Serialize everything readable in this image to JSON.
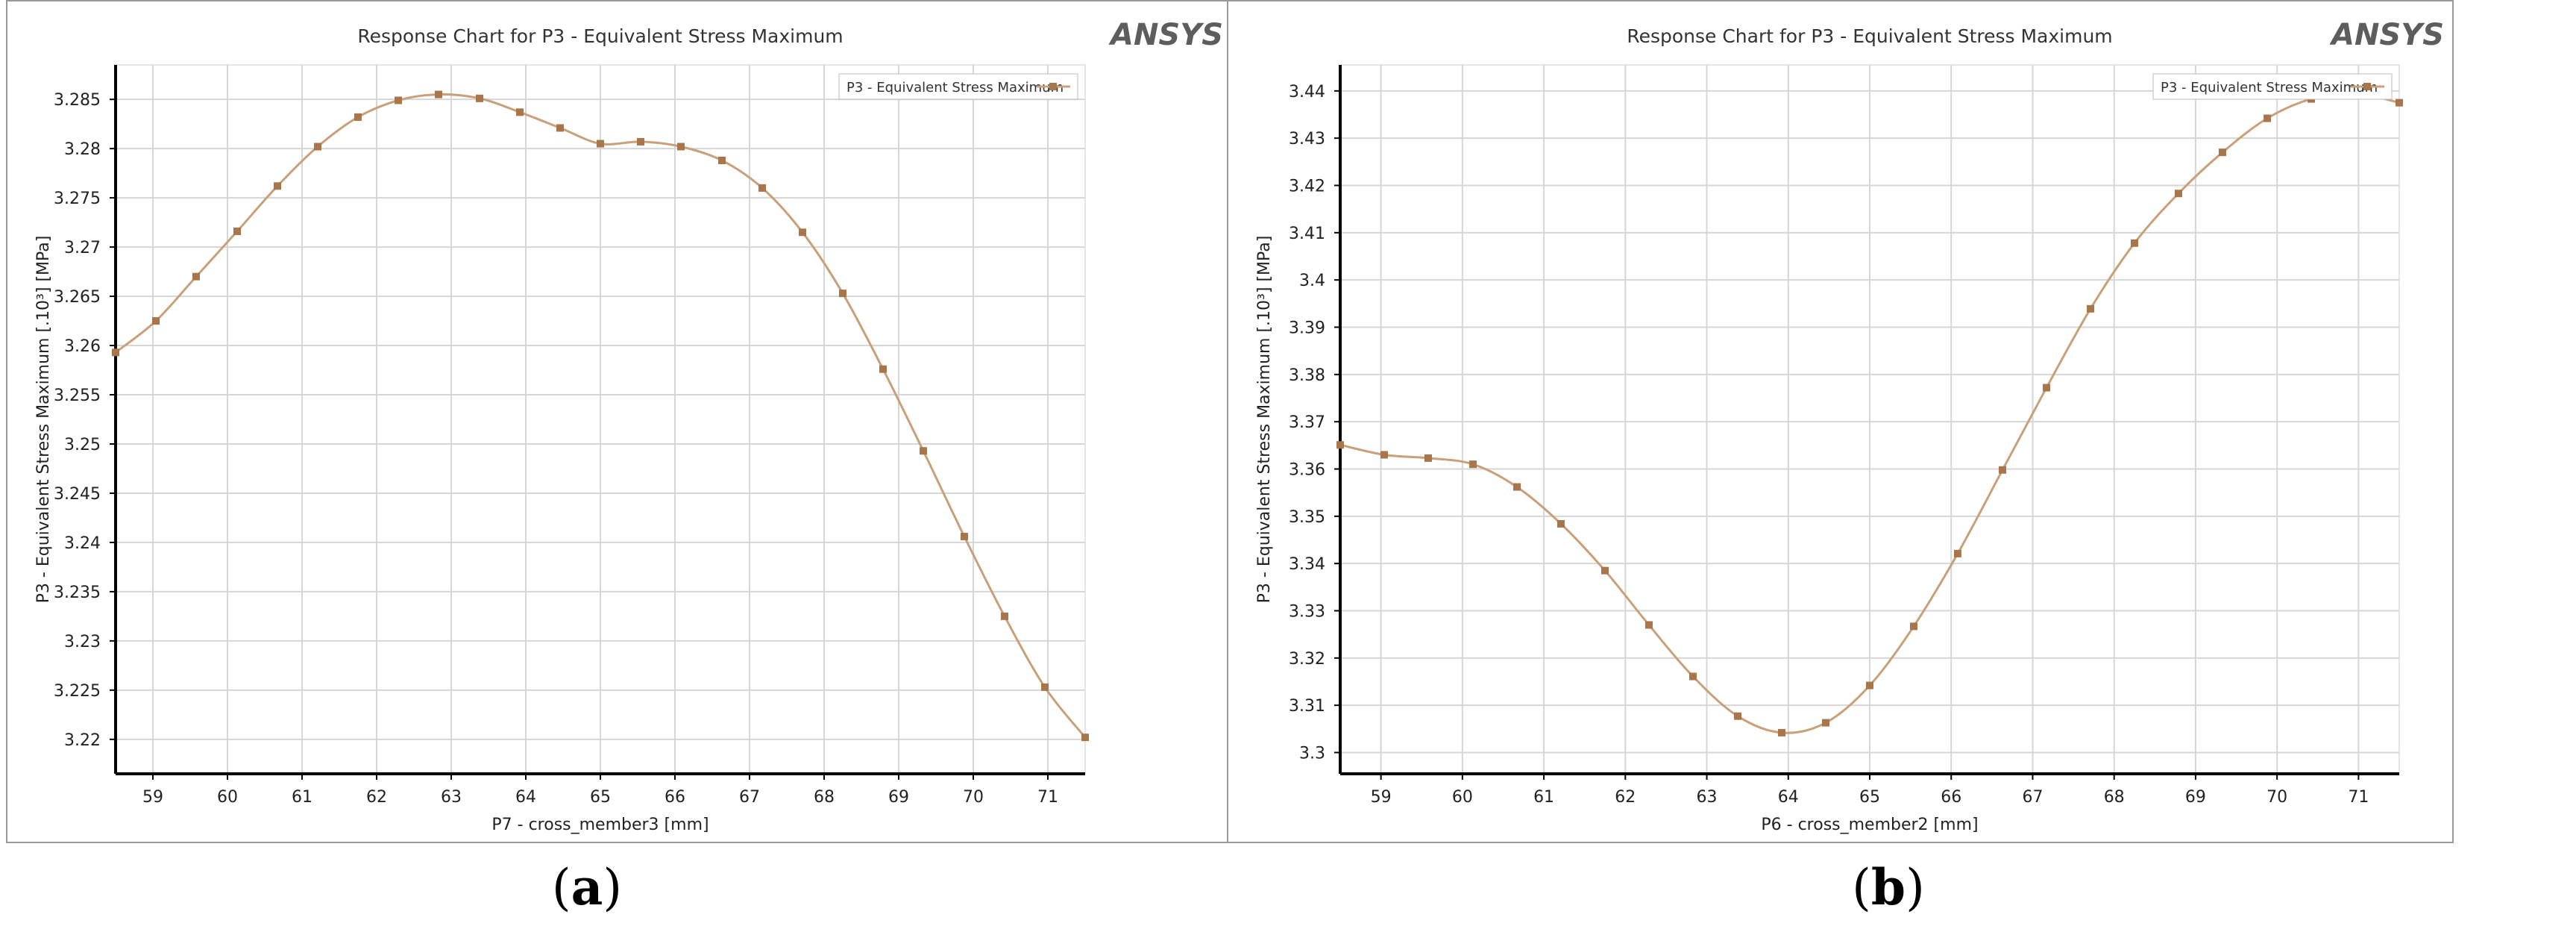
{
  "captions": {
    "a": "a",
    "b": "b"
  },
  "colors": {
    "series": "#c8a07a",
    "marker": "#a8764a",
    "grid": "#d6d6d6",
    "axis": "#000000",
    "logo_blue": "#5d5d5d",
    "logo_gold": "#e5b11a"
  },
  "chart_data": [
    {
      "type": "line",
      "title": "Response Chart for P3 - Equivalent Stress Maximum",
      "logo": "ANSYS",
      "xlabel": "P7 - cross_member3 [mm]",
      "ylabel": "P3 - Equivalent Stress Maximum [.10³] [MPa]",
      "xlim": [
        58.5,
        71.5
      ],
      "ylim": [
        3.2165,
        3.2885
      ],
      "xticks": [
        "59",
        "60",
        "61",
        "62",
        "63",
        "64",
        "65",
        "66",
        "67",
        "68",
        "69",
        "70",
        "71"
      ],
      "yticks": [
        "3.22",
        "3.225",
        "3.23",
        "3.235",
        "3.24",
        "3.245",
        "3.25",
        "3.255",
        "3.26",
        "3.265",
        "3.27",
        "3.275",
        "3.28",
        "3.285"
      ],
      "legend_position": "top-right",
      "series": [
        {
          "name": "P3 - Equivalent Stress Maximum",
          "x": [
            58.5,
            59.04,
            59.58,
            60.13,
            60.67,
            61.21,
            61.75,
            62.29,
            62.83,
            63.38,
            63.92,
            64.46,
            65.0,
            65.54,
            66.08,
            66.63,
            67.17,
            67.71,
            68.25,
            68.79,
            69.33,
            69.88,
            70.42,
            70.96,
            71.5
          ],
          "values": [
            3.2593,
            3.2625,
            3.267,
            3.2716,
            3.2762,
            3.2802,
            3.2832,
            3.2849,
            3.2855,
            3.2851,
            3.2837,
            3.2821,
            3.2805,
            3.2807,
            3.2802,
            3.2788,
            3.276,
            3.2715,
            3.2653,
            3.2576,
            3.2493,
            3.2406,
            3.2325,
            3.2253,
            3.2202
          ]
        }
      ]
    },
    {
      "type": "line",
      "title": "Response Chart for P3 - Equivalent Stress Maximum",
      "logo": "ANSYS",
      "xlabel": "P6 - cross_member2 [mm]",
      "ylabel": "P3 - Equivalent Stress Maximum [.10³] [MPa]",
      "xlim": [
        58.5,
        71.5
      ],
      "ylim": [
        3.2955,
        3.4455
      ],
      "xticks": [
        "59",
        "60",
        "61",
        "62",
        "63",
        "64",
        "65",
        "66",
        "67",
        "68",
        "69",
        "70",
        "71"
      ],
      "yticks": [
        "3.3",
        "3.31",
        "3.32",
        "3.33",
        "3.34",
        "3.35",
        "3.36",
        "3.37",
        "3.38",
        "3.39",
        "3.4",
        "3.41",
        "3.42",
        "3.43",
        "3.44"
      ],
      "legend_position": "top-right",
      "series": [
        {
          "name": "P3 - Equivalent Stress Maximum",
          "x": [
            58.5,
            59.04,
            59.58,
            60.13,
            60.67,
            61.21,
            61.75,
            62.29,
            62.83,
            63.38,
            63.92,
            64.46,
            65.0,
            65.54,
            66.08,
            66.63,
            67.17,
            67.71,
            68.25,
            68.79,
            69.33,
            69.88,
            70.42,
            70.96,
            71.5
          ],
          "values": [
            3.3651,
            3.363,
            3.3623,
            3.361,
            3.3562,
            3.3484,
            3.3385,
            3.327,
            3.3161,
            3.3077,
            3.3042,
            3.3063,
            3.3142,
            3.3267,
            3.3421,
            3.3598,
            3.3772,
            3.3939,
            3.4078,
            3.4183,
            3.427,
            3.4342,
            3.4383,
            3.4395,
            3.4375
          ]
        }
      ]
    }
  ]
}
